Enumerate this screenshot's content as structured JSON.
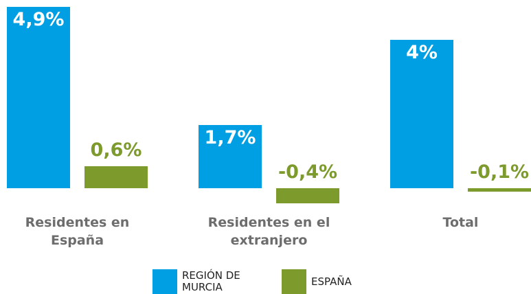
{
  "chart_data": {
    "type": "bar",
    "categories": [
      "Residentes en España",
      "Residentes en  el extranjero",
      "Total"
    ],
    "series": [
      {
        "name": "REGIÓN DE MURCIA",
        "color": "#009fe3",
        "values": [
          4.9,
          1.7,
          4
        ],
        "value_labels": [
          "4,9%",
          "1,7%",
          "4%"
        ]
      },
      {
        "name": "ESPAÑA",
        "color": "#7d9a2c",
        "values": [
          0.6,
          -0.4,
          -0.1
        ],
        "value_labels": [
          "0,6%",
          "-0,4%",
          "-0,1%"
        ]
      }
    ]
  }
}
